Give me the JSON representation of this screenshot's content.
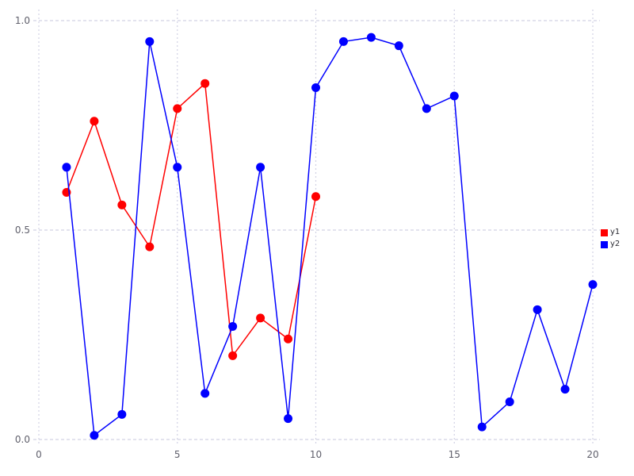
{
  "colors": {
    "background": "#ffffff",
    "grid": "#d2d2e4",
    "tick_label": "#5f5f6b",
    "legend_text": "#2b2b33",
    "series_y1": "#ff0000",
    "series_y2": "#0000ff"
  },
  "legend": {
    "position": "right",
    "items": [
      "y1",
      "y2"
    ]
  },
  "chart_data": {
    "type": "line",
    "title": "",
    "xlabel": "",
    "ylabel": "",
    "xlim": [
      0,
      20
    ],
    "ylim": [
      0.0,
      1.0
    ],
    "xticks": [
      0,
      5,
      10,
      15,
      20
    ],
    "yticks": [
      0.0,
      0.5,
      1.0
    ],
    "xtick_labels": [
      "0",
      "5",
      "10",
      "15",
      "20"
    ],
    "ytick_labels": [
      "0.0",
      "0.5",
      "1.0"
    ],
    "grid": "dashed, at ticks only",
    "legend_position": "outside right, middle",
    "marker": "circle",
    "series": [
      {
        "name": "y1",
        "color": "#ff0000",
        "x": [
          1,
          2,
          3,
          4,
          5,
          6,
          7,
          8,
          9,
          10
        ],
        "values": [
          0.59,
          0.76,
          0.56,
          0.46,
          0.79,
          0.85,
          0.2,
          0.29,
          0.24,
          0.58
        ]
      },
      {
        "name": "y2",
        "color": "#0000ff",
        "x": [
          1,
          2,
          3,
          4,
          5,
          6,
          7,
          8,
          9,
          10,
          11,
          12,
          13,
          14,
          15,
          16,
          17,
          18,
          19,
          20
        ],
        "values": [
          0.65,
          0.01,
          0.06,
          0.95,
          0.65,
          0.11,
          0.27,
          0.65,
          0.05,
          0.84,
          0.95,
          0.96,
          0.94,
          0.79,
          0.82,
          0.03,
          0.09,
          0.31,
          0.12,
          0.37
        ]
      }
    ]
  }
}
